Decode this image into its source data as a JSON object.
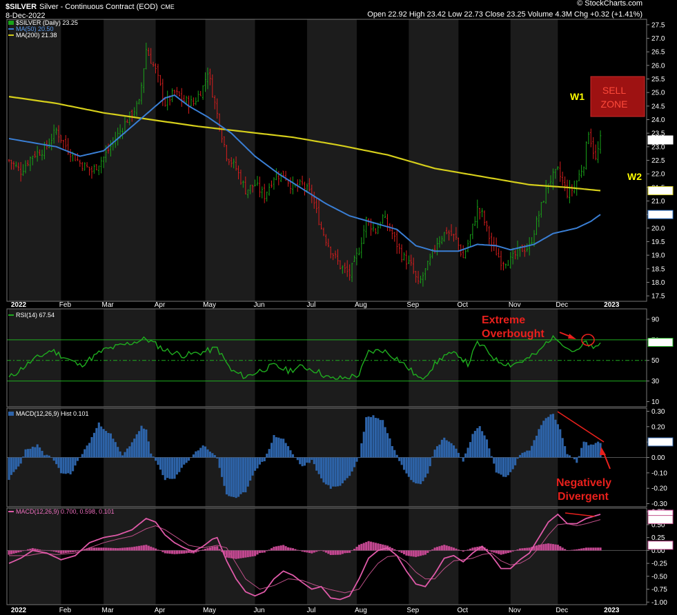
{
  "header": {
    "symbol": "$SILVER",
    "name": "Silver - Continuous Contract (EOD)",
    "exchange": "CME",
    "date": "8-Dec-2022",
    "ohlc": "Open 22.92  High 23.42  Low 22.73  Close 23.25  Volume 4.3M  Chg +0.32 (+1.41%)",
    "credit": "© StockCharts.com"
  },
  "colors": {
    "up": "#19a319",
    "down": "#d81e1e",
    "ma50": "#3a7fd5",
    "ma200": "#d6cf1b",
    "rsi": "#1fae1f",
    "macd_hist": "#2d63a8",
    "macd_line": "#e05aa9",
    "annot_red": "#e8201c",
    "wave_yellow": "#ffff00"
  },
  "months": [
    "2022",
    "Feb",
    "Mar",
    "Apr",
    "May",
    "Jun",
    "Jul",
    "Aug",
    "Sep",
    "Oct",
    "Nov",
    "Dec",
    "2023"
  ],
  "chart_data": [
    {
      "type": "candlestick",
      "title": "$SILVER (Daily) 23.25",
      "legend": [
        "$SILVER (Daily) 23.25",
        "MA(50) 20.50",
        "MA(200) 21.38"
      ],
      "ylim": [
        17.3,
        27.7
      ],
      "yticks": [
        "27.5",
        "27.0",
        "26.5",
        "26.0",
        "25.5",
        "25.0",
        "24.5",
        "24.0",
        "23.5",
        "23.0",
        "22.5",
        "22.0",
        "21.5",
        "21.0",
        "20.5",
        "20.0",
        "19.5",
        "19.0",
        "18.5",
        "18.0",
        "17.5"
      ],
      "last_labels": {
        "price": "23.25",
        "ma200": "21.38",
        "ma50": "20.50"
      },
      "close_anchors": [
        [
          0,
          22.5
        ],
        [
          5,
          22.1
        ],
        [
          10,
          22.7
        ],
        [
          15,
          22.9
        ],
        [
          20,
          23.6
        ],
        [
          25,
          22.9
        ],
        [
          30,
          22.4
        ],
        [
          35,
          22.1
        ],
        [
          40,
          22.6
        ],
        [
          45,
          23.3
        ],
        [
          50,
          24.0
        ],
        [
          55,
          24.6
        ],
        [
          58,
          26.6
        ],
        [
          62,
          25.8
        ],
        [
          66,
          24.6
        ],
        [
          70,
          25.0
        ],
        [
          74,
          24.7
        ],
        [
          78,
          24.6
        ],
        [
          82,
          25.2
        ],
        [
          84,
          25.8
        ],
        [
          88,
          24.2
        ],
        [
          92,
          22.7
        ],
        [
          96,
          22.2
        ],
        [
          100,
          21.4
        ],
        [
          104,
          21.6
        ],
        [
          108,
          21.2
        ],
        [
          112,
          21.9
        ],
        [
          116,
          22.0
        ],
        [
          120,
          21.5
        ],
        [
          124,
          21.6
        ],
        [
          128,
          21.2
        ],
        [
          132,
          20.0
        ],
        [
          136,
          19.2
        ],
        [
          140,
          18.6
        ],
        [
          144,
          18.3
        ],
        [
          148,
          19.2
        ],
        [
          151,
          20.3
        ],
        [
          155,
          19.9
        ],
        [
          158,
          20.4
        ],
        [
          162,
          19.8
        ],
        [
          166,
          19.0
        ],
        [
          170,
          18.6
        ],
        [
          173,
          17.9
        ],
        [
          177,
          18.6
        ],
        [
          181,
          19.5
        ],
        [
          185,
          19.9
        ],
        [
          189,
          19.6
        ],
        [
          192,
          18.9
        ],
        [
          195,
          19.7
        ],
        [
          198,
          20.7
        ],
        [
          200,
          20.5
        ],
        [
          204,
          19.4
        ],
        [
          208,
          18.8
        ],
        [
          212,
          18.8
        ],
        [
          216,
          19.2
        ],
        [
          220,
          19.3
        ],
        [
          224,
          20.5
        ],
        [
          228,
          21.7
        ],
        [
          232,
          22.1
        ],
        [
          236,
          21.3
        ],
        [
          239,
          21.5
        ],
        [
          243,
          22.4
        ],
        [
          245,
          23.6
        ],
        [
          248,
          22.5
        ],
        [
          250,
          23.25
        ]
      ],
      "ma50_anchors": [
        [
          0,
          23.3
        ],
        [
          20,
          23.0
        ],
        [
          30,
          22.65
        ],
        [
          40,
          22.85
        ],
        [
          50,
          23.6
        ],
        [
          60,
          24.35
        ],
        [
          66,
          24.8
        ],
        [
          70,
          24.9
        ],
        [
          76,
          24.5
        ],
        [
          84,
          24.1
        ],
        [
          94,
          23.5
        ],
        [
          104,
          22.65
        ],
        [
          114,
          22.0
        ],
        [
          124,
          21.45
        ],
        [
          134,
          20.9
        ],
        [
          144,
          20.45
        ],
        [
          154,
          20.2
        ],
        [
          164,
          19.95
        ],
        [
          172,
          19.35
        ],
        [
          180,
          19.15
        ],
        [
          190,
          19.15
        ],
        [
          198,
          19.4
        ],
        [
          206,
          19.35
        ],
        [
          212,
          19.2
        ],
        [
          222,
          19.4
        ],
        [
          230,
          19.8
        ],
        [
          240,
          20.0
        ],
        [
          246,
          20.25
        ],
        [
          250,
          20.5
        ]
      ],
      "ma200_anchors": [
        [
          0,
          24.85
        ],
        [
          20,
          24.6
        ],
        [
          40,
          24.25
        ],
        [
          60,
          24.0
        ],
        [
          80,
          23.75
        ],
        [
          100,
          23.55
        ],
        [
          120,
          23.35
        ],
        [
          140,
          23.05
        ],
        [
          160,
          22.7
        ],
        [
          180,
          22.2
        ],
        [
          200,
          21.9
        ],
        [
          220,
          21.6
        ],
        [
          236,
          21.5
        ],
        [
          250,
          21.38
        ]
      ]
    },
    {
      "type": "line",
      "title": "RSI(14) 67.54",
      "ylim": [
        5,
        100
      ],
      "yticks": [
        "90",
        "70",
        "50",
        "30",
        "10"
      ],
      "reference_levels": [
        70,
        50,
        30
      ],
      "last_label": "67.54",
      "anchors": [
        [
          0,
          33
        ],
        [
          10,
          50
        ],
        [
          18,
          60
        ],
        [
          30,
          45
        ],
        [
          40,
          60
        ],
        [
          50,
          66
        ],
        [
          58,
          71
        ],
        [
          66,
          60
        ],
        [
          74,
          55
        ],
        [
          82,
          58
        ],
        [
          88,
          62
        ],
        [
          94,
          40
        ],
        [
          100,
          34
        ],
        [
          106,
          40
        ],
        [
          112,
          45
        ],
        [
          118,
          40
        ],
        [
          124,
          44
        ],
        [
          130,
          40
        ],
        [
          136,
          32
        ],
        [
          142,
          33
        ],
        [
          148,
          36
        ],
        [
          152,
          58
        ],
        [
          158,
          60
        ],
        [
          164,
          52
        ],
        [
          170,
          40
        ],
        [
          174,
          31
        ],
        [
          180,
          46
        ],
        [
          184,
          55
        ],
        [
          190,
          56
        ],
        [
          194,
          46
        ],
        [
          198,
          67
        ],
        [
          202,
          60
        ],
        [
          206,
          50
        ],
        [
          212,
          46
        ],
        [
          218,
          50
        ],
        [
          224,
          58
        ],
        [
          228,
          70
        ],
        [
          232,
          72
        ],
        [
          236,
          62
        ],
        [
          240,
          58
        ],
        [
          244,
          68
        ],
        [
          247,
          60
        ],
        [
          250,
          67.54
        ]
      ]
    },
    {
      "type": "bar",
      "title": "MACD(12,26,9) Hist 0.101",
      "ylim": [
        -0.32,
        0.32
      ],
      "yticks": [
        "0.30",
        "0.20",
        "0.10",
        "0.00",
        "-0.10",
        "-0.20",
        "-0.30"
      ],
      "last_label": "0.101",
      "anchors": [
        [
          0,
          -0.14
        ],
        [
          5,
          -0.04
        ],
        [
          7,
          0.05
        ],
        [
          12,
          0.08
        ],
        [
          15,
          0.02
        ],
        [
          18,
          0.0
        ],
        [
          22,
          -0.1
        ],
        [
          26,
          -0.11
        ],
        [
          30,
          0.0
        ],
        [
          34,
          0.1
        ],
        [
          38,
          0.22
        ],
        [
          43,
          0.15
        ],
        [
          48,
          0.01
        ],
        [
          52,
          0.1
        ],
        [
          56,
          0.2
        ],
        [
          58,
          0.18
        ],
        [
          60,
          0.02
        ],
        [
          62,
          -0.02
        ],
        [
          66,
          -0.14
        ],
        [
          70,
          -0.14
        ],
        [
          74,
          -0.05
        ],
        [
          78,
          0.02
        ],
        [
          82,
          0.08
        ],
        [
          86,
          0.03
        ],
        [
          88,
          -0.01
        ],
        [
          92,
          -0.24
        ],
        [
          96,
          -0.27
        ],
        [
          100,
          -0.22
        ],
        [
          104,
          -0.08
        ],
        [
          108,
          -0.02
        ],
        [
          112,
          0.14
        ],
        [
          116,
          0.12
        ],
        [
          120,
          0.02
        ],
        [
          124,
          -0.06
        ],
        [
          128,
          -0.02
        ],
        [
          132,
          -0.14
        ],
        [
          136,
          -0.2
        ],
        [
          140,
          -0.18
        ],
        [
          144,
          -0.12
        ],
        [
          148,
          0.0
        ],
        [
          151,
          0.26
        ],
        [
          154,
          0.27
        ],
        [
          158,
          0.24
        ],
        [
          162,
          0.08
        ],
        [
          165,
          -0.02
        ],
        [
          168,
          -0.1
        ],
        [
          171,
          -0.16
        ],
        [
          174,
          -0.17
        ],
        [
          177,
          -0.1
        ],
        [
          180,
          0.05
        ],
        [
          184,
          0.13
        ],
        [
          188,
          0.08
        ],
        [
          192,
          -0.02
        ],
        [
          196,
          0.15
        ],
        [
          199,
          0.2
        ],
        [
          202,
          0.12
        ],
        [
          206,
          -0.1
        ],
        [
          210,
          -0.13
        ],
        [
          213,
          -0.08
        ],
        [
          216,
          0.02
        ],
        [
          220,
          0.05
        ],
        [
          224,
          0.18
        ],
        [
          227,
          0.26
        ],
        [
          230,
          0.28
        ],
        [
          233,
          0.18
        ],
        [
          236,
          0.02
        ],
        [
          240,
          -0.03
        ],
        [
          243,
          0.1
        ],
        [
          246,
          0.08
        ],
        [
          250,
          0.101
        ]
      ]
    },
    {
      "type": "line",
      "title": "MACD(12,26,9) 0.700, 0.598, 0.101",
      "ylim": [
        -1.05,
        0.82
      ],
      "yticks": [
        "0.75",
        "0.50",
        "0.25",
        "0.00",
        "-0.25",
        "-0.50",
        "-0.75",
        "-1.00"
      ],
      "last_labels": {
        "macd": "0.700",
        "signal": "0.598",
        "hist": "0.101"
      },
      "macd_anchors": [
        [
          0,
          -0.25
        ],
        [
          5,
          -0.15
        ],
        [
          10,
          0.0
        ],
        [
          16,
          -0.05
        ],
        [
          22,
          -0.18
        ],
        [
          28,
          -0.1
        ],
        [
          34,
          0.15
        ],
        [
          40,
          0.25
        ],
        [
          46,
          0.3
        ],
        [
          52,
          0.4
        ],
        [
          58,
          0.62
        ],
        [
          62,
          0.55
        ],
        [
          66,
          0.3
        ],
        [
          70,
          0.15
        ],
        [
          74,
          0.05
        ],
        [
          78,
          -0.02
        ],
        [
          82,
          0.08
        ],
        [
          86,
          0.22
        ],
        [
          88,
          0.25
        ],
        [
          92,
          -0.2
        ],
        [
          96,
          -0.55
        ],
        [
          100,
          -0.8
        ],
        [
          104,
          -0.88
        ],
        [
          108,
          -0.8
        ],
        [
          112,
          -0.55
        ],
        [
          116,
          -0.4
        ],
        [
          120,
          -0.48
        ],
        [
          124,
          -0.62
        ],
        [
          128,
          -0.75
        ],
        [
          132,
          -0.7
        ],
        [
          136,
          -0.92
        ],
        [
          140,
          -0.95
        ],
        [
          144,
          -0.88
        ],
        [
          148,
          -0.55
        ],
        [
          152,
          -0.15
        ],
        [
          156,
          0.0
        ],
        [
          160,
          0.05
        ],
        [
          164,
          -0.1
        ],
        [
          168,
          -0.4
        ],
        [
          172,
          -0.65
        ],
        [
          176,
          -0.7
        ],
        [
          180,
          -0.45
        ],
        [
          184,
          -0.15
        ],
        [
          188,
          -0.1
        ],
        [
          192,
          -0.22
        ],
        [
          196,
          -0.05
        ],
        [
          200,
          0.08
        ],
        [
          204,
          -0.1
        ],
        [
          208,
          -0.35
        ],
        [
          212,
          -0.35
        ],
        [
          216,
          -0.18
        ],
        [
          220,
          -0.05
        ],
        [
          224,
          0.25
        ],
        [
          228,
          0.55
        ],
        [
          232,
          0.7
        ],
        [
          236,
          0.52
        ],
        [
          240,
          0.52
        ],
        [
          244,
          0.62
        ],
        [
          250,
          0.7
        ]
      ],
      "signal_anchors": [
        [
          0,
          -0.1
        ],
        [
          8,
          -0.1
        ],
        [
          14,
          -0.05
        ],
        [
          20,
          -0.08
        ],
        [
          28,
          -0.05
        ],
        [
          34,
          0.05
        ],
        [
          40,
          0.15
        ],
        [
          46,
          0.22
        ],
        [
          52,
          0.28
        ],
        [
          58,
          0.42
        ],
        [
          62,
          0.48
        ],
        [
          66,
          0.4
        ],
        [
          70,
          0.28
        ],
        [
          76,
          0.1
        ],
        [
          82,
          0.05
        ],
        [
          88,
          0.1
        ],
        [
          92,
          0.05
        ],
        [
          96,
          -0.25
        ],
        [
          100,
          -0.55
        ],
        [
          106,
          -0.75
        ],
        [
          112,
          -0.68
        ],
        [
          118,
          -0.55
        ],
        [
          124,
          -0.58
        ],
        [
          130,
          -0.68
        ],
        [
          136,
          -0.76
        ],
        [
          142,
          -0.82
        ],
        [
          148,
          -0.75
        ],
        [
          152,
          -0.48
        ],
        [
          156,
          -0.25
        ],
        [
          160,
          -0.12
        ],
        [
          164,
          -0.1
        ],
        [
          168,
          -0.22
        ],
        [
          172,
          -0.42
        ],
        [
          176,
          -0.55
        ],
        [
          180,
          -0.55
        ],
        [
          184,
          -0.35
        ],
        [
          188,
          -0.2
        ],
        [
          192,
          -0.18
        ],
        [
          196,
          -0.15
        ],
        [
          200,
          -0.08
        ],
        [
          204,
          -0.05
        ],
        [
          208,
          -0.2
        ],
        [
          212,
          -0.28
        ],
        [
          216,
          -0.25
        ],
        [
          220,
          -0.15
        ],
        [
          224,
          0.05
        ],
        [
          228,
          0.3
        ],
        [
          232,
          0.5
        ],
        [
          236,
          0.52
        ],
        [
          240,
          0.48
        ],
        [
          244,
          0.52
        ],
        [
          250,
          0.598
        ]
      ]
    }
  ],
  "annotations": {
    "sell_zone_line1": "SELL",
    "sell_zone_line2": "ZONE",
    "w1": "W1",
    "w2": "W2",
    "extreme_line1": "Extreme",
    "extreme_line2": "Overbought",
    "neg_line1": "Negatively",
    "neg_line2": "Divergent"
  }
}
